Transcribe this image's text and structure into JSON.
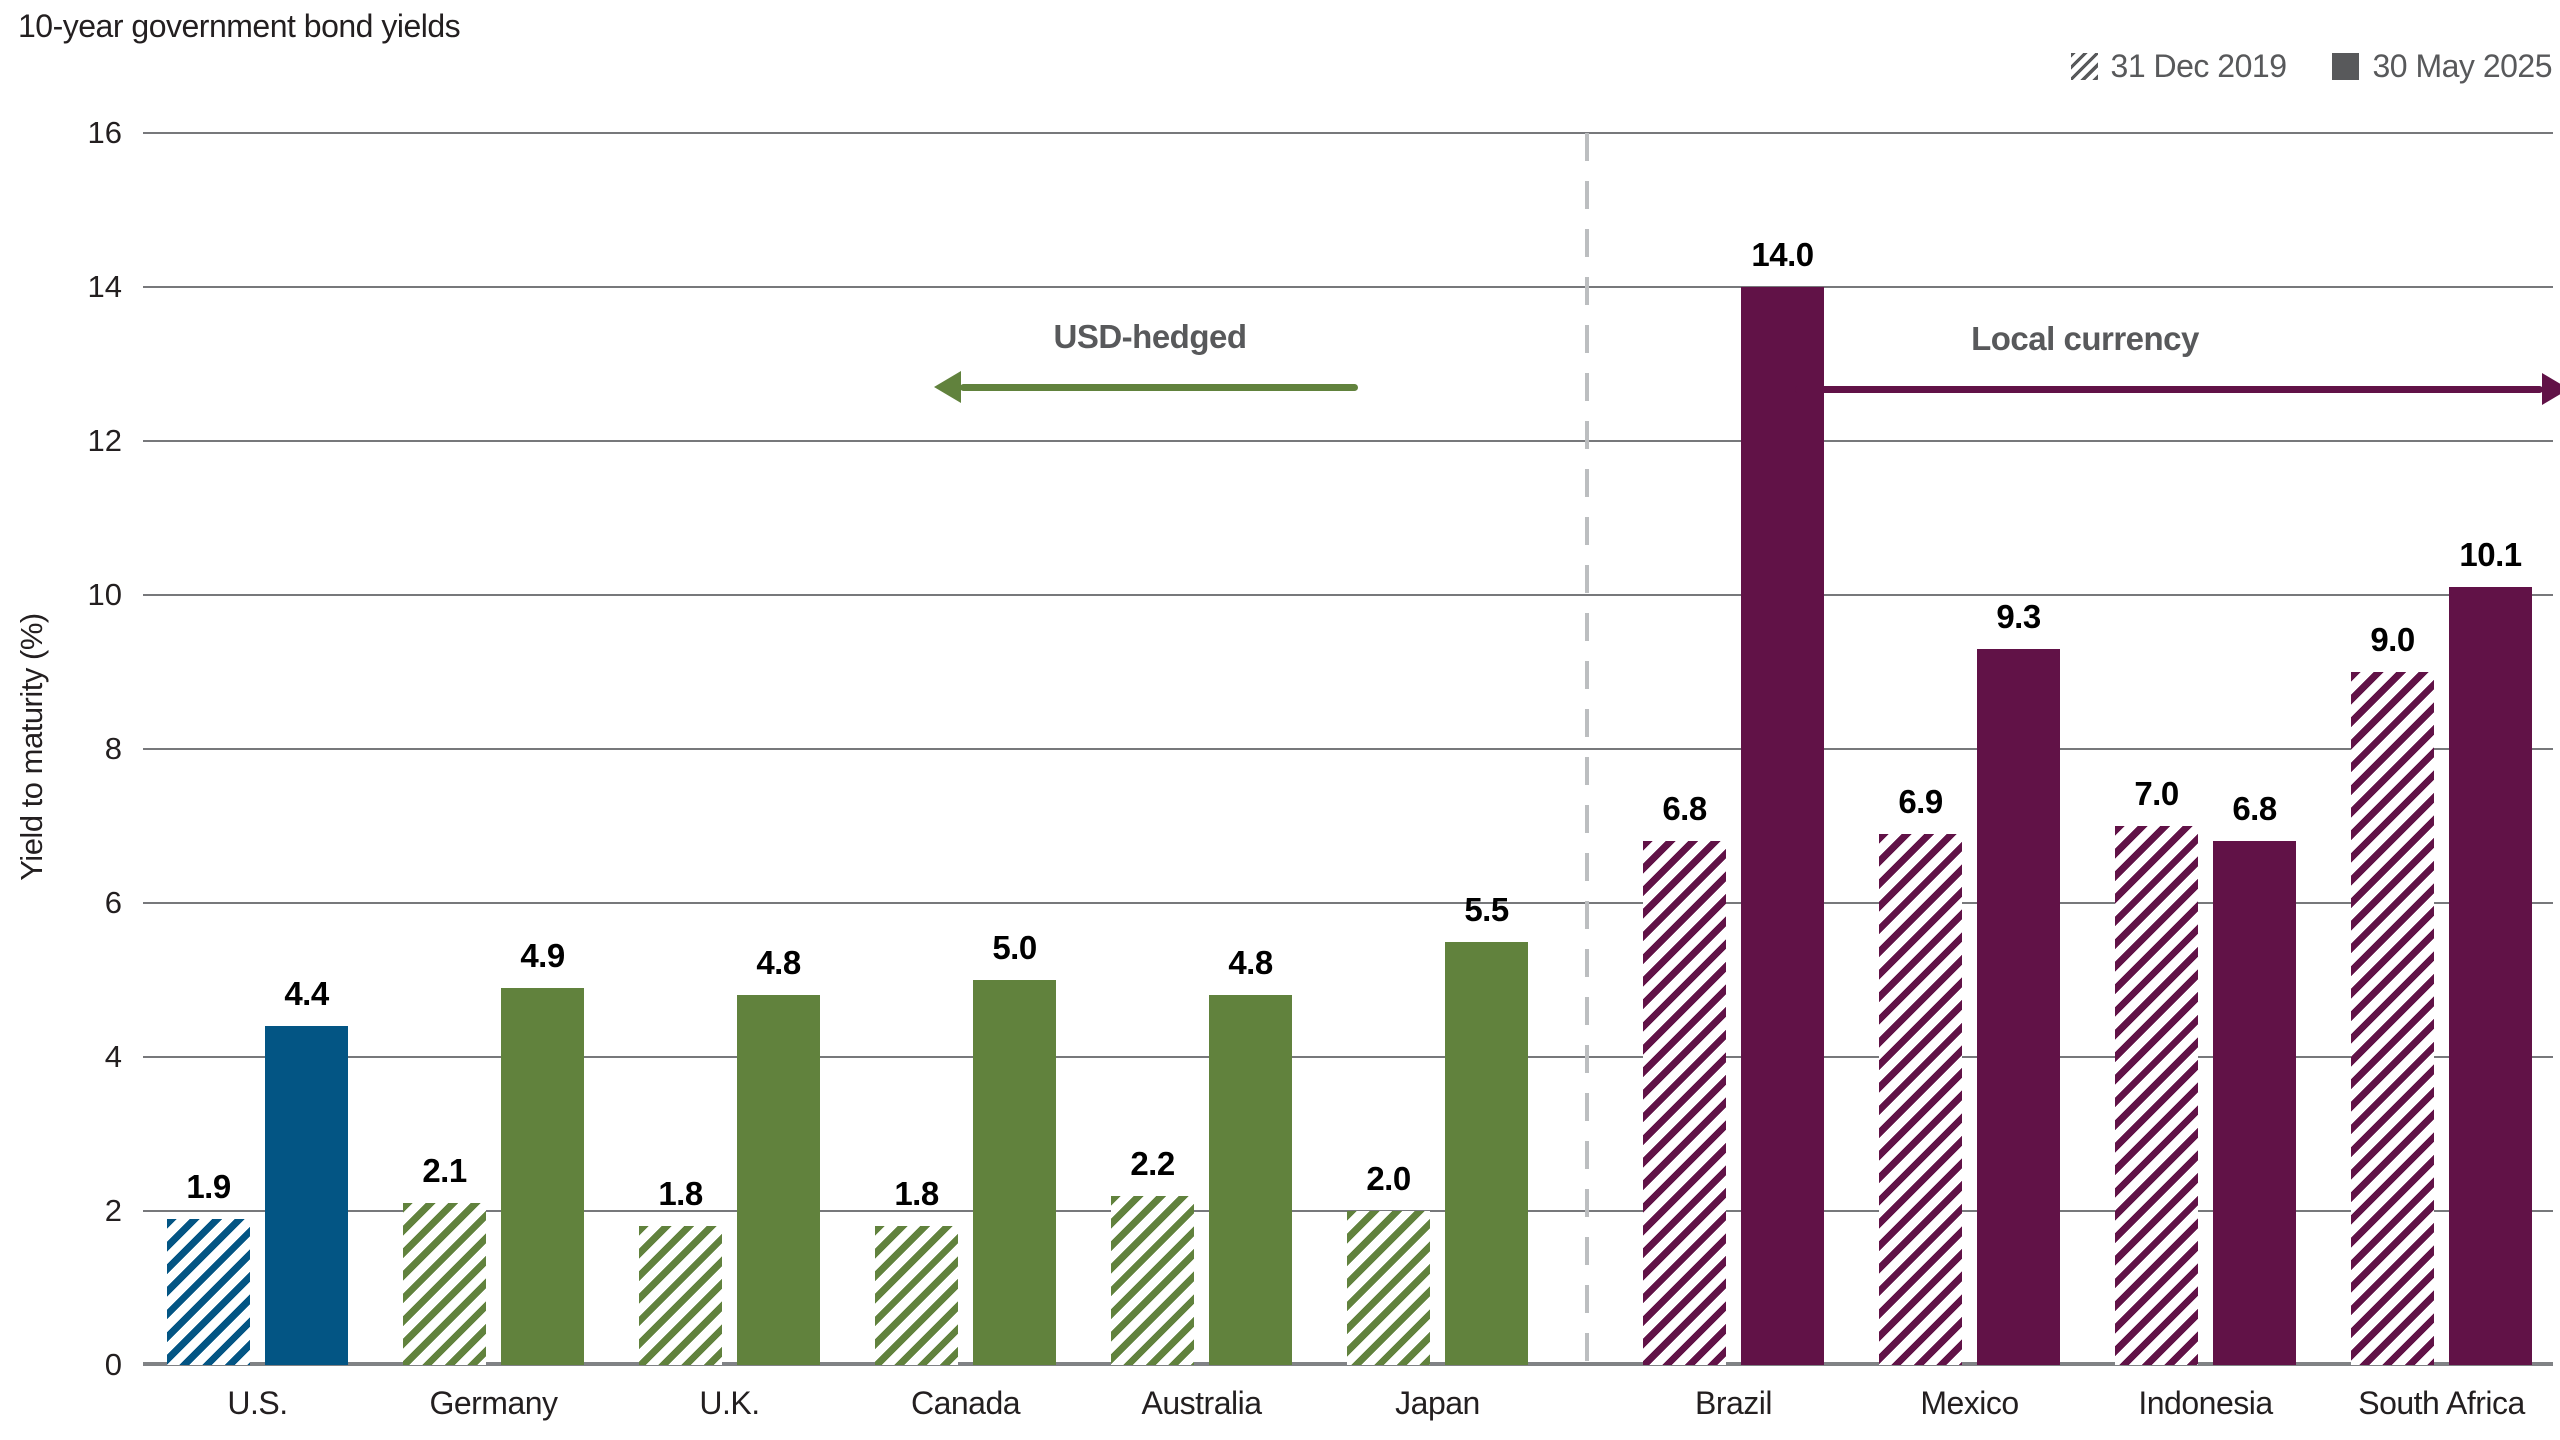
{
  "title": "10-year government bond yields",
  "legend": [
    {
      "label": "31 Dec 2019",
      "swatch": "hatched-gray"
    },
    {
      "label": "30 May 2025",
      "swatch": "solid-gray"
    }
  ],
  "annotations": {
    "usd_hedged": {
      "label": "USD-hedged",
      "arrow_direction": "left",
      "arrow_color": "#61823d"
    },
    "local_currency": {
      "label": "Local currency",
      "arrow_direction": "right",
      "arrow_color": "#611247"
    }
  },
  "colors": {
    "us_blue": "#035584",
    "dm_green": "#61823d",
    "em_maroon": "#611247",
    "legend_gray": "#58595b",
    "gridline": "#77787b",
    "axis_line": "#808285",
    "divider_dashed": "#bcbec0",
    "value_label": "#000000"
  },
  "chart_data": {
    "type": "bar",
    "title": "10-year government bond yields",
    "xlabel": "",
    "ylabel": "Yield to maturity (%)",
    "ylim": [
      0,
      16
    ],
    "yticks": [
      0,
      2,
      4,
      6,
      8,
      10,
      12,
      14,
      16
    ],
    "grid": "horizontal",
    "legend_position": "top-right",
    "categories": [
      "U.S.",
      "Germany",
      "U.K.",
      "Canada",
      "Australia",
      "Japan",
      "Brazil",
      "Mexico",
      "Indonesia",
      "South Africa"
    ],
    "series": [
      {
        "name": "31 Dec 2019",
        "style": "hatched",
        "values": [
          1.9,
          2.1,
          1.8,
          1.8,
          2.2,
          2.0,
          6.8,
          6.9,
          7.0,
          9.0
        ]
      },
      {
        "name": "30 May 2025",
        "style": "solid",
        "values": [
          4.4,
          4.9,
          4.8,
          5.0,
          4.8,
          5.5,
          14.0,
          9.3,
          6.8,
          10.1
        ]
      }
    ],
    "bar_colors": [
      "#035584",
      "#61823d",
      "#61823d",
      "#61823d",
      "#61823d",
      "#61823d",
      "#611247",
      "#611247",
      "#611247",
      "#611247"
    ],
    "sections": [
      {
        "label": "USD-hedged",
        "category_range": [
          0,
          5
        ]
      },
      {
        "label": "Local currency",
        "category_range": [
          6,
          9
        ]
      }
    ],
    "value_label_format": "one-decimal"
  }
}
